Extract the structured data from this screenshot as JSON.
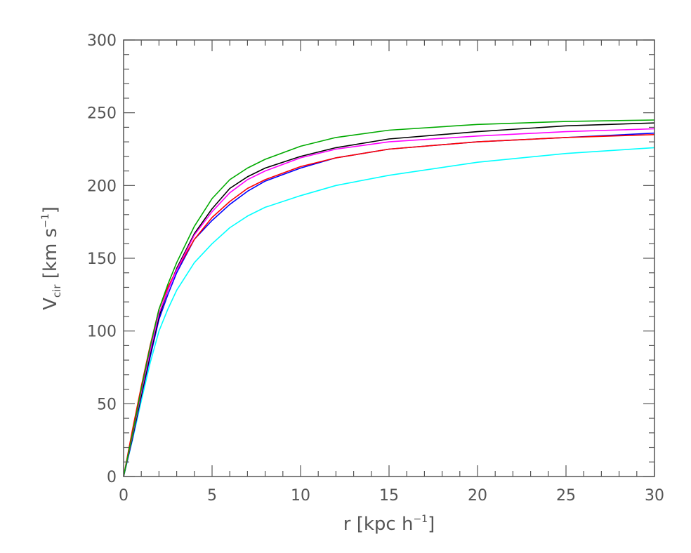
{
  "chart_data": {
    "type": "line",
    "xlabel": {
      "main": "r",
      "unit_open": " [kpc h",
      "unit_sup": "−1",
      "unit_close": "]"
    },
    "ylabel": {
      "main": "V",
      "sub": "cir",
      "unit_open": " [km s",
      "unit_sup": "−1",
      "unit_close": "]"
    },
    "xlim": [
      0,
      30
    ],
    "ylim": [
      0,
      300
    ],
    "x_ticks": [
      0,
      5,
      10,
      15,
      20,
      25,
      30
    ],
    "y_ticks": [
      0,
      50,
      100,
      150,
      200,
      250,
      300
    ],
    "x_minor_step": 1,
    "y_minor_step": 10,
    "grid": false,
    "legend": "none",
    "series": [
      {
        "color": "#00ffff",
        "x": [
          0,
          0.5,
          1,
          1.5,
          2,
          2.5,
          3,
          4,
          5,
          6,
          7,
          8,
          10,
          12,
          15,
          20,
          25,
          30
        ],
        "y": [
          0,
          25,
          52,
          78,
          100,
          115,
          128,
          147,
          160,
          171,
          179,
          185,
          193,
          200,
          207,
          216,
          222,
          226
        ]
      },
      {
        "color": "#0000ff",
        "x": [
          0,
          0.5,
          1,
          1.5,
          2,
          2.5,
          3,
          4,
          5,
          6,
          7,
          8,
          10,
          12,
          15,
          20,
          25,
          30
        ],
        "y": [
          0,
          26,
          55,
          82,
          108,
          125,
          140,
          163,
          176,
          187,
          196,
          203,
          212,
          219,
          225,
          230,
          233,
          236
        ]
      },
      {
        "color": "#000000",
        "x": [
          0,
          0.5,
          1,
          1.5,
          2,
          2.5,
          3,
          4,
          5,
          6,
          7,
          8,
          10,
          12,
          15,
          20,
          25,
          30
        ],
        "y": [
          0,
          27,
          56,
          84,
          110,
          128,
          143,
          167,
          184,
          198,
          206,
          212,
          220,
          226,
          232,
          237,
          241,
          243
        ]
      },
      {
        "color": "#ff0000",
        "x": [
          0,
          0.5,
          1,
          1.5,
          2,
          2.5,
          3,
          4,
          5,
          6,
          7,
          8,
          10,
          12,
          15,
          20,
          25,
          30
        ],
        "y": [
          0,
          32,
          62,
          90,
          115,
          130,
          142,
          163,
          178,
          189,
          198,
          204,
          213,
          219,
          225,
          230,
          233,
          235
        ]
      },
      {
        "color": "#ff00ff",
        "x": [
          0,
          0.5,
          1,
          1.5,
          2,
          2.5,
          3,
          4,
          5,
          6,
          7,
          8,
          10,
          12,
          15,
          20,
          25,
          30
        ],
        "y": [
          0,
          28,
          58,
          86,
          112,
          128,
          142,
          166,
          182,
          195,
          204,
          210,
          219,
          225,
          230,
          234,
          237,
          239
        ]
      },
      {
        "color": "#00aa00",
        "x": [
          0,
          0.5,
          1,
          1.5,
          2,
          2.5,
          3,
          4,
          5,
          6,
          7,
          8,
          10,
          12,
          15,
          20,
          25,
          30
        ],
        "y": [
          0,
          29,
          60,
          89,
          115,
          132,
          147,
          172,
          191,
          204,
          212,
          218,
          227,
          233,
          238,
          242,
          244,
          245
        ]
      }
    ]
  }
}
